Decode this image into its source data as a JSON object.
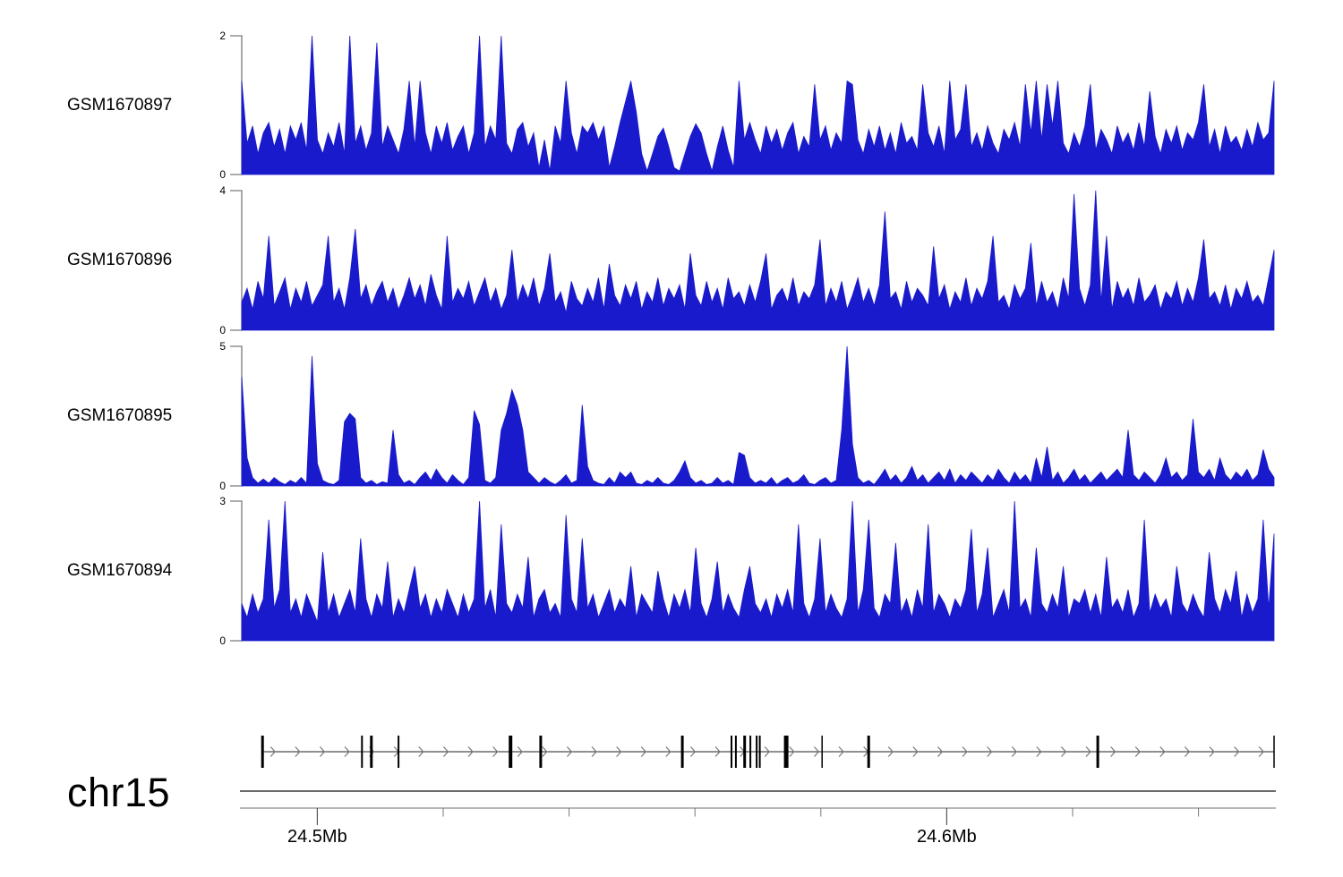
{
  "page": {
    "background_color": "#ffffff"
  },
  "chart_data": {
    "type": "area",
    "title": "",
    "legend": null,
    "grid": false,
    "genome_axis": {
      "label": "chr15",
      "x_start_mb": 24.488,
      "x_end_mb": 24.652,
      "major_ticks": [
        {
          "mb": 24.5,
          "label": "24.5Mb"
        },
        {
          "mb": 24.6,
          "label": "24.6Mb"
        }
      ],
      "minor_ticks_mb": [
        24.52,
        24.54,
        24.56,
        24.58,
        24.62,
        24.64
      ]
    },
    "gene_track": {
      "strand_direction": "right",
      "gene_start_mb": 24.4913,
      "gene_end_mb": 24.652,
      "exon_marks": [
        {
          "mb": 24.4913,
          "weight": 3
        },
        {
          "mb": 24.5071,
          "weight": 2
        },
        {
          "mb": 24.5086,
          "weight": 3
        },
        {
          "mb": 24.5129,
          "weight": 2
        },
        {
          "mb": 24.5307,
          "weight": 4
        },
        {
          "mb": 24.5355,
          "weight": 3
        },
        {
          "mb": 24.558,
          "weight": 3
        },
        {
          "mb": 24.5658,
          "weight": 2
        },
        {
          "mb": 24.5665,
          "weight": 2
        },
        {
          "mb": 24.5679,
          "weight": 3
        },
        {
          "mb": 24.5688,
          "weight": 2
        },
        {
          "mb": 24.5698,
          "weight": 2
        },
        {
          "mb": 24.5703,
          "weight": 2
        },
        {
          "mb": 24.5745,
          "weight": 5
        },
        {
          "mb": 24.5802,
          "weight": 1.5
        },
        {
          "mb": 24.5876,
          "weight": 3
        },
        {
          "mb": 24.624,
          "weight": 3
        },
        {
          "mb": 24.652,
          "weight": 1.5
        }
      ]
    },
    "style": {
      "signal_color": "#1a1acd",
      "axis_bracket_color": "#7a7a7a",
      "gene_line_color": "#222222",
      "arrow_color": "#777777",
      "ruler_top_color": "#3a3a3a",
      "ruler_bottom_color": "#8a8a8a",
      "tick_color": "#555555",
      "text_color": "#000000"
    },
    "tracks": [
      {
        "label": "GSM1670897",
        "ymax": 2,
        "ymax_label": "2",
        "ymin_label": "0",
        "values": [
          1.35,
          0.45,
          0.7,
          0.3,
          0.6,
          0.75,
          0.4,
          0.65,
          0.3,
          0.7,
          0.5,
          0.75,
          0.35,
          2.0,
          0.5,
          0.3,
          0.6,
          0.4,
          0.75,
          0.3,
          2.0,
          0.45,
          0.7,
          0.35,
          0.6,
          1.9,
          0.4,
          0.7,
          0.5,
          0.3,
          0.65,
          1.35,
          0.4,
          1.35,
          0.6,
          0.3,
          0.7,
          0.45,
          0.75,
          0.35,
          0.55,
          0.7,
          0.3,
          0.6,
          2.0,
          0.4,
          0.7,
          0.5,
          2.0,
          0.45,
          0.3,
          0.65,
          0.75,
          0.4,
          0.6,
          0.1,
          0.5,
          0.05,
          0.7,
          0.45,
          1.35,
          0.6,
          0.3,
          0.7,
          0.6,
          0.75,
          0.5,
          0.7,
          0.1,
          0.4,
          0.75,
          1.05,
          1.35,
          0.9,
          0.3,
          0.05,
          0.3,
          0.55,
          0.67,
          0.4,
          0.1,
          0.05,
          0.3,
          0.55,
          0.73,
          0.6,
          0.3,
          0.05,
          0.4,
          0.7,
          0.35,
          0.1,
          1.35,
          0.5,
          0.75,
          0.5,
          0.3,
          0.7,
          0.45,
          0.65,
          0.35,
          0.6,
          0.75,
          0.3,
          0.55,
          0.4,
          1.3,
          0.5,
          0.7,
          0.35,
          0.6,
          0.45,
          1.35,
          1.3,
          0.5,
          0.3,
          0.65,
          0.4,
          0.7,
          0.35,
          0.6,
          0.3,
          0.75,
          0.45,
          0.55,
          0.35,
          1.3,
          0.6,
          0.4,
          0.7,
          0.3,
          1.35,
          0.5,
          0.65,
          1.3,
          0.4,
          0.6,
          0.35,
          0.7,
          0.45,
          0.3,
          0.65,
          0.5,
          0.75,
          0.4,
          1.3,
          0.6,
          1.35,
          0.5,
          1.3,
          0.7,
          1.35,
          0.45,
          0.3,
          0.6,
          0.4,
          0.7,
          1.3,
          0.35,
          0.65,
          0.5,
          0.3,
          0.7,
          0.45,
          0.6,
          0.35,
          0.75,
          0.4,
          1.2,
          0.55,
          0.3,
          0.65,
          0.45,
          0.7,
          0.35,
          0.6,
          0.5,
          0.75,
          1.3,
          0.4,
          0.65,
          0.3,
          0.7,
          0.45,
          0.55,
          0.35,
          0.65,
          0.4,
          0.75,
          0.5,
          0.6,
          1.35
        ]
      },
      {
        "label": "GSM1670896",
        "ymax": 4,
        "ymax_label": "4",
        "ymin_label": "0",
        "values": [
          0.8,
          1.2,
          0.6,
          1.4,
          0.9,
          2.7,
          0.7,
          1.1,
          1.5,
          0.6,
          1.2,
          0.8,
          1.4,
          0.7,
          1.0,
          1.3,
          2.7,
          0.8,
          1.2,
          0.6,
          1.5,
          2.9,
          0.9,
          1.3,
          0.7,
          1.1,
          1.4,
          0.8,
          1.2,
          0.6,
          1.0,
          1.5,
          0.9,
          1.3,
          0.7,
          1.6,
          1.0,
          0.6,
          2.7,
          0.8,
          1.2,
          0.9,
          1.4,
          0.7,
          1.1,
          1.5,
          0.8,
          1.2,
          0.6,
          1.0,
          2.3,
          0.8,
          1.3,
          0.9,
          1.5,
          0.7,
          1.2,
          2.2,
          0.8,
          1.1,
          0.5,
          1.4,
          0.9,
          0.7,
          1.2,
          0.8,
          1.5,
          0.6,
          1.9,
          1.0,
          0.7,
          1.3,
          0.9,
          1.4,
          0.6,
          1.1,
          0.8,
          1.5,
          0.7,
          1.2,
          0.9,
          1.3,
          0.6,
          2.2,
          1.0,
          0.7,
          1.4,
          0.8,
          1.2,
          0.6,
          1.5,
          0.9,
          1.1,
          0.7,
          1.3,
          0.8,
          1.4,
          2.2,
          0.6,
          1.0,
          1.2,
          0.8,
          1.5,
          0.7,
          1.1,
          0.9,
          1.3,
          2.6,
          0.7,
          1.2,
          0.8,
          1.4,
          0.6,
          1.0,
          1.5,
          0.8,
          1.2,
          0.7,
          1.3,
          3.4,
          0.9,
          1.1,
          0.6,
          1.4,
          0.8,
          1.2,
          1.0,
          0.7,
          2.4,
          0.9,
          1.3,
          0.6,
          1.1,
          0.8,
          1.5,
          0.7,
          1.2,
          0.9,
          1.4,
          2.7,
          0.8,
          1.0,
          0.6,
          1.3,
          0.9,
          1.2,
          2.5,
          0.7,
          1.4,
          0.8,
          1.1,
          0.6,
          1.5,
          0.9,
          3.9,
          1.2,
          0.7,
          1.3,
          4.0,
          0.8,
          2.7,
          0.6,
          1.4,
          0.9,
          1.2,
          0.7,
          1.5,
          0.8,
          1.0,
          1.3,
          0.6,
          1.1,
          0.9,
          1.4,
          0.7,
          1.2,
          0.8,
          1.5,
          2.6,
          0.9,
          1.1,
          0.7,
          1.3,
          0.6,
          1.2,
          0.9,
          1.4,
          0.8,
          1.0,
          0.7,
          1.5,
          2.3
        ]
      },
      {
        "label": "GSM1670895",
        "ymax": 5,
        "ymax_label": "5",
        "ymin_label": "0",
        "values": [
          3.9,
          1.0,
          0.3,
          0.1,
          0.25,
          0.1,
          0.3,
          0.15,
          0.05,
          0.2,
          0.1,
          0.3,
          0.1,
          4.65,
          0.8,
          0.2,
          0.1,
          0.05,
          0.2,
          2.3,
          2.6,
          2.4,
          0.3,
          0.1,
          0.2,
          0.05,
          0.15,
          0.1,
          2.0,
          0.4,
          0.1,
          0.2,
          0.05,
          0.3,
          0.5,
          0.2,
          0.6,
          0.3,
          0.1,
          0.4,
          0.2,
          0.05,
          0.3,
          2.7,
          2.2,
          0.2,
          0.1,
          0.3,
          2.0,
          2.6,
          3.45,
          2.9,
          2.0,
          0.5,
          0.3,
          0.1,
          0.3,
          0.15,
          0.05,
          0.2,
          0.4,
          0.1,
          0.2,
          2.9,
          0.7,
          0.2,
          0.1,
          0.05,
          0.3,
          0.1,
          0.5,
          0.3,
          0.5,
          0.1,
          0.05,
          0.2,
          0.1,
          0.3,
          0.1,
          0.05,
          0.2,
          0.5,
          0.9,
          0.3,
          0.1,
          0.2,
          0.05,
          0.1,
          0.3,
          0.1,
          0.2,
          0.05,
          1.2,
          1.1,
          0.3,
          0.1,
          0.2,
          0.1,
          0.3,
          0.05,
          0.2,
          0.3,
          0.1,
          0.2,
          0.4,
          0.1,
          0.05,
          0.2,
          0.3,
          0.1,
          0.2,
          2.0,
          5.0,
          1.5,
          0.3,
          0.1,
          0.2,
          0.05,
          0.3,
          0.6,
          0.2,
          0.4,
          0.1,
          0.3,
          0.7,
          0.2,
          0.4,
          0.1,
          0.3,
          0.5,
          0.2,
          0.6,
          0.1,
          0.4,
          0.2,
          0.5,
          0.3,
          0.1,
          0.4,
          0.2,
          0.6,
          0.3,
          0.1,
          0.5,
          0.2,
          0.4,
          0.1,
          1.0,
          0.3,
          1.4,
          0.2,
          0.5,
          0.1,
          0.3,
          0.6,
          0.2,
          0.4,
          0.1,
          0.3,
          0.5,
          0.2,
          0.4,
          0.6,
          0.3,
          2.0,
          0.4,
          0.2,
          0.5,
          0.3,
          0.1,
          0.4,
          1.0,
          0.3,
          0.5,
          0.2,
          0.4,
          2.4,
          0.5,
          0.3,
          0.6,
          0.2,
          1.0,
          0.4,
          0.2,
          0.5,
          0.3,
          0.6,
          0.2,
          0.4,
          1.3,
          0.6,
          0.3
        ]
      },
      {
        "label": "GSM1670894",
        "ymax": 3,
        "ymax_label": "3",
        "ymin_label": "0",
        "values": [
          0.8,
          0.5,
          1.0,
          0.6,
          0.9,
          2.6,
          0.7,
          1.1,
          3.0,
          0.6,
          0.9,
          0.5,
          1.0,
          0.7,
          0.4,
          1.9,
          0.6,
          1.0,
          0.5,
          0.8,
          1.1,
          0.6,
          2.2,
          0.9,
          0.5,
          1.0,
          0.7,
          1.7,
          0.5,
          0.9,
          0.6,
          1.1,
          1.6,
          0.7,
          1.0,
          0.5,
          0.9,
          0.6,
          1.1,
          0.8,
          0.5,
          1.0,
          0.6,
          0.9,
          3.0,
          0.7,
          1.1,
          0.5,
          2.5,
          0.8,
          0.6,
          1.0,
          0.7,
          1.8,
          0.5,
          0.9,
          1.1,
          0.6,
          0.8,
          0.5,
          2.7,
          0.9,
          0.6,
          2.2,
          0.7,
          1.0,
          0.5,
          0.8,
          1.1,
          0.6,
          0.9,
          0.7,
          1.6,
          0.5,
          1.0,
          0.8,
          0.6,
          1.5,
          0.9,
          0.5,
          1.0,
          0.7,
          1.1,
          0.6,
          2.0,
          0.8,
          0.5,
          0.9,
          1.7,
          0.6,
          1.0,
          0.7,
          0.5,
          1.1,
          1.6,
          0.8,
          0.6,
          0.9,
          0.5,
          1.0,
          0.7,
          1.1,
          0.6,
          2.5,
          0.8,
          0.5,
          0.9,
          2.2,
          0.6,
          1.0,
          0.7,
          0.5,
          0.9,
          3.0,
          0.6,
          1.1,
          2.6,
          0.7,
          0.5,
          1.0,
          0.8,
          2.1,
          0.6,
          0.9,
          0.5,
          1.1,
          0.7,
          2.5,
          0.6,
          1.0,
          0.8,
          0.5,
          0.9,
          0.7,
          1.1,
          2.4,
          0.6,
          1.0,
          2.0,
          0.5,
          0.8,
          1.1,
          0.6,
          3.0,
          0.7,
          0.9,
          0.5,
          2.0,
          0.8,
          0.6,
          1.0,
          0.7,
          1.6,
          0.5,
          0.9,
          0.8,
          1.1,
          0.6,
          1.0,
          0.5,
          1.8,
          0.7,
          0.9,
          0.6,
          1.1,
          0.5,
          0.8,
          2.6,
          0.6,
          1.0,
          0.7,
          0.9,
          0.5,
          1.6,
          0.8,
          0.6,
          1.0,
          0.7,
          0.5,
          1.9,
          0.9,
          0.6,
          1.1,
          0.8,
          1.5,
          0.5,
          1.0,
          0.6,
          0.9,
          2.6,
          0.7,
          2.3
        ]
      }
    ]
  }
}
